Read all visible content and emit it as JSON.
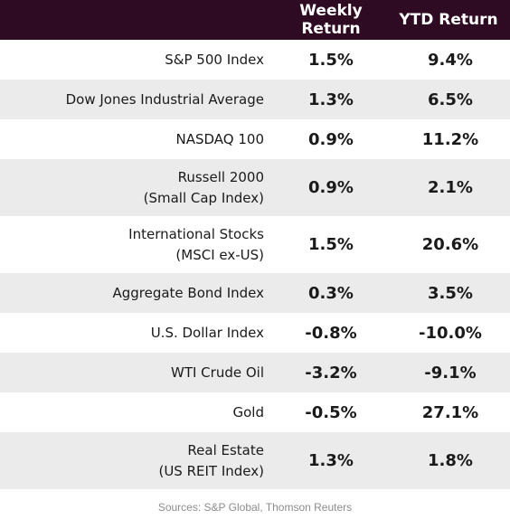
{
  "headers": {
    "label": "",
    "weekly": "Weekly Return",
    "ytd": "YTD Return"
  },
  "rows": [
    {
      "label": [
        "S&P 500 Index"
      ],
      "weekly": "1.5%",
      "ytd": "9.4%"
    },
    {
      "label": [
        "Dow Jones Industrial Average"
      ],
      "weekly": "1.3%",
      "ytd": "6.5%"
    },
    {
      "label": [
        "NASDAQ 100"
      ],
      "weekly": "0.9%",
      "ytd": "11.2%"
    },
    {
      "label": [
        "Russell 2000 ",
        "(Small Cap Index)"
      ],
      "weekly": "0.9%",
      "ytd": "2.1%"
    },
    {
      "label": [
        "International Stocks",
        "(MSCI ex-US)"
      ],
      "weekly": "1.5%",
      "ytd": "20.6%"
    },
    {
      "label": [
        "Aggregate Bond Index"
      ],
      "weekly": "0.3%",
      "ytd": "3.5%"
    },
    {
      "label": [
        "U.S. Dollar Index"
      ],
      "weekly": "-0.8%",
      "ytd": "-10.0%"
    },
    {
      "label": [
        "WTI Crude Oil"
      ],
      "weekly": "-3.2%",
      "ytd": "-9.1%"
    },
    {
      "label": [
        "Gold"
      ],
      "weekly": "-0.5%",
      "ytd": "27.1%"
    },
    {
      "label": [
        "Real Estate",
        "(US REIT Index)"
      ],
      "weekly": "1.3%",
      "ytd": "1.8%"
    }
  ],
  "source": "Sources: S&P Global, Thomson Reuters",
  "colors": {
    "header_bg": "#2e0b22",
    "header_text": "#ffffff",
    "stripe": "#ebebeb"
  }
}
